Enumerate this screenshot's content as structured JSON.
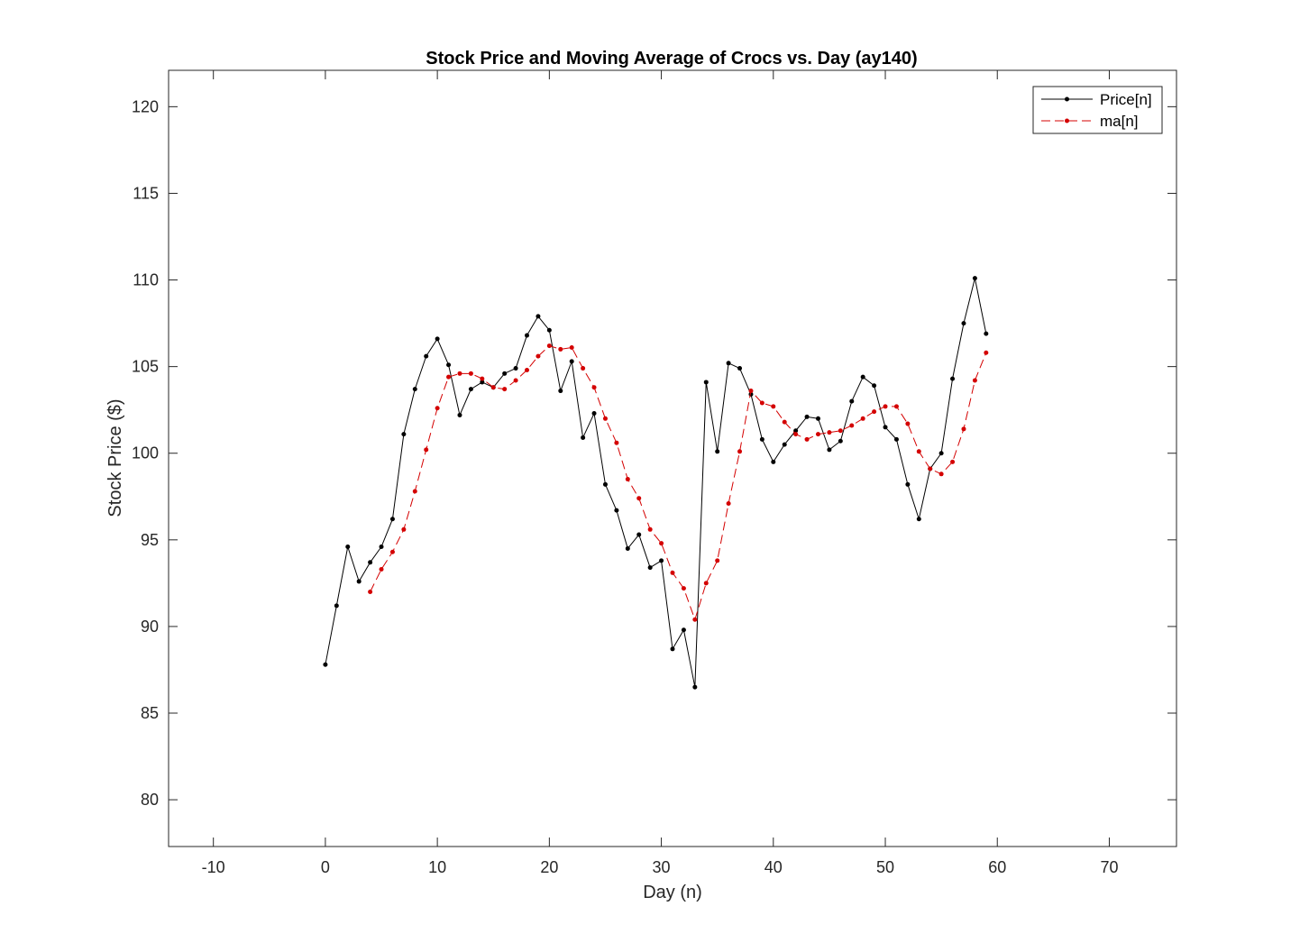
{
  "chart_data": {
    "type": "line",
    "title": "Stock Price and Moving Average of Crocs vs. Day (ay140)",
    "xlabel": "Day (n)",
    "ylabel": "Stock Price ($)",
    "xlim": [
      -14,
      76
    ],
    "ylim": [
      77.3,
      122.1
    ],
    "xticks": [
      -10,
      0,
      10,
      20,
      30,
      40,
      50,
      60,
      70
    ],
    "yticks": [
      80,
      85,
      90,
      95,
      100,
      105,
      110,
      115,
      120
    ],
    "grid": false,
    "legend_position": "top-right",
    "series": [
      {
        "name": "Price[n]",
        "color": "#000000",
        "line_style": "solid",
        "x": [
          0,
          1,
          2,
          3,
          4,
          5,
          6,
          7,
          8,
          9,
          10,
          11,
          12,
          13,
          14,
          15,
          16,
          17,
          18,
          19,
          20,
          21,
          22,
          23,
          24,
          25,
          26,
          27,
          28,
          29,
          30,
          31,
          32,
          33,
          34,
          35,
          36,
          37,
          38,
          39,
          40,
          41,
          42,
          43,
          44,
          45,
          46,
          47,
          48,
          49,
          50,
          51,
          52,
          53,
          54,
          55,
          56,
          57,
          58,
          59
        ],
        "values": [
          87.8,
          91.2,
          94.6,
          92.6,
          93.7,
          94.6,
          96.2,
          101.1,
          103.7,
          105.6,
          106.6,
          105.1,
          102.2,
          103.7,
          104.1,
          103.8,
          104.6,
          104.9,
          106.8,
          107.9,
          107.1,
          103.6,
          105.3,
          100.9,
          102.3,
          98.2,
          96.7,
          94.5,
          95.3,
          93.4,
          93.8,
          88.7,
          89.8,
          86.5,
          104.1,
          100.1,
          105.2,
          104.9,
          103.4,
          100.8,
          99.5,
          100.5,
          101.3,
          102.1,
          102.0,
          100.2,
          100.7,
          103.0,
          104.4,
          103.9,
          101.5,
          100.8,
          98.2,
          96.2,
          99.1,
          100.0,
          104.3,
          107.5,
          110.1,
          106.9
        ]
      },
      {
        "name": "ma[n]",
        "color": "#d40000",
        "line_style": "dashed",
        "x": [
          4,
          5,
          6,
          7,
          8,
          9,
          10,
          11,
          12,
          13,
          14,
          15,
          16,
          17,
          18,
          19,
          20,
          21,
          22,
          23,
          24,
          25,
          26,
          27,
          28,
          29,
          30,
          31,
          32,
          33,
          34,
          35,
          36,
          37,
          38,
          39,
          40,
          41,
          42,
          43,
          44,
          45,
          46,
          47,
          48,
          49,
          50,
          51,
          52,
          53,
          54,
          55,
          56,
          57,
          58,
          59
        ],
        "values": [
          92.0,
          93.3,
          94.3,
          95.6,
          97.8,
          100.2,
          102.6,
          104.4,
          104.6,
          104.6,
          104.3,
          103.8,
          103.7,
          104.2,
          104.8,
          105.6,
          106.2,
          106.0,
          106.1,
          104.9,
          103.8,
          102.0,
          100.6,
          98.5,
          97.4,
          95.6,
          94.8,
          93.1,
          92.2,
          90.4,
          92.5,
          93.8,
          97.1,
          100.1,
          103.6,
          102.9,
          102.7,
          101.8,
          101.1,
          100.8,
          101.1,
          101.2,
          101.3,
          101.6,
          102.0,
          102.4,
          102.7,
          102.7,
          101.7,
          100.1,
          99.1,
          98.8,
          99.5,
          101.4,
          104.2,
          105.8
        ]
      }
    ]
  }
}
